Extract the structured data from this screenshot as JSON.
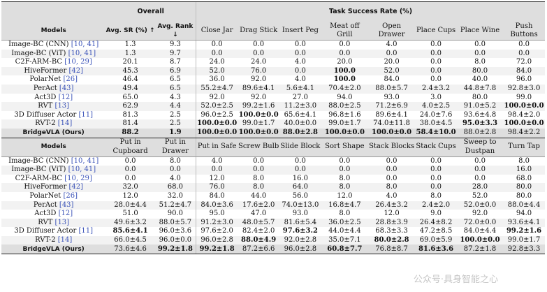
{
  "top": {
    "overall_label": "Overall",
    "tsr_label": "Task Success Rate (%)",
    "models_label": "Models",
    "avg_sr_label": "Avg. SR (%) ↑",
    "avg_rank_label": "Avg. Rank ↓",
    "tasks": [
      "Close Jar",
      "Drag Stick",
      "Insert Peg",
      "Meat off Grill",
      "Open Drawer",
      "Place Cups",
      "Place Wine",
      "Push Buttons"
    ],
    "rows": [
      {
        "model": "Image-BC (CNN)",
        "cite": "[10, 41]",
        "cells": [
          "1.3",
          "9.3",
          "0.0",
          "0.0",
          "0.0",
          "0.0",
          "4.0",
          "0.0",
          "0.0",
          "0.0"
        ],
        "bold": []
      },
      {
        "model": "Image-BC (ViT)",
        "cite": "[10, 41]",
        "cells": [
          "1.3",
          "9.7",
          "0.0",
          "0.0",
          "0.0",
          "0.0",
          "0.0",
          "0.0",
          "0.0",
          "0.0"
        ],
        "bold": []
      },
      {
        "model": "C2F-ARM-BC",
        "cite": "[10, 29]",
        "cells": [
          "20.1",
          "8.7",
          "24.0",
          "24.0",
          "4.0",
          "20.0",
          "20.0",
          "0.0",
          "8.0",
          "72.0"
        ],
        "bold": []
      },
      {
        "model": "HiveFormer",
        "cite": "[42]",
        "cells": [
          "45.3",
          "6.9",
          "52.0",
          "76.0",
          "0.0",
          "100.0",
          "52.0",
          "0.0",
          "80.0",
          "84.0"
        ],
        "bold": [
          5
        ]
      },
      {
        "model": "PolarNet",
        "cite": "[26]",
        "cells": [
          "46.4",
          "6.5",
          "36.0",
          "92.0",
          "4.0",
          "100.0",
          "84.0",
          "0.0",
          "40.0",
          "96.0"
        ],
        "bold": [
          5
        ]
      },
      {
        "model": "PerAct",
        "cite": "[43]",
        "cells": [
          "49.4",
          "6.5",
          "55.2±4.7",
          "89.6±4.1",
          "5.6±4.1",
          "70.4±2.0",
          "88.0±5.7",
          "2.4±3.2",
          "44.8±7.8",
          "92.8±3.0"
        ],
        "bold": []
      },
      {
        "model": "Act3D",
        "cite": "[12]",
        "cells": [
          "65.0",
          "4.3",
          "92.0",
          "92.0",
          "27.0",
          "94.0",
          "93.0",
          "3.0",
          "80.0",
          "99.0"
        ],
        "bold": []
      },
      {
        "model": "RVT",
        "cite": "[13]",
        "cells": [
          "62.9",
          "4.4",
          "52.0±2.5",
          "99.2±1.6",
          "11.2±3.0",
          "88.0±2.5",
          "71.2±6.9",
          "4.0±2.5",
          "91.0±5.2",
          "100.0±0.0"
        ],
        "bold": [
          9
        ]
      },
      {
        "model": "3D Diffuser Actor",
        "cite": "[11]",
        "cells": [
          "81.3",
          "2.5",
          "96.0±2.5",
          "100.0±0.0",
          "65.6±4.1",
          "96.8±1.6",
          "89.6±4.1",
          "24.0±7.6",
          "93.6±4.8",
          "98.4±2.0"
        ],
        "bold": [
          3
        ]
      },
      {
        "model": "RVT-2",
        "cite": "[14]",
        "cells": [
          "81.4",
          "2.5",
          "100.0±0.0",
          "99.0±1.7",
          "40.0±0.0",
          "99.0±1.7",
          "74.0±11.8",
          "38.0±4.5",
          "95.0±3.3",
          "100.0±0.0"
        ],
        "bold": [
          2,
          8,
          9
        ]
      },
      {
        "model": "BridgeVLA (Ours)",
        "cite": "",
        "cells": [
          "88.2",
          "1.9",
          "100.0±0.0",
          "100.0±0.0",
          "88.0±2.8",
          "100.0±0.0",
          "100.0±0.0",
          "58.4±10.0",
          "88.0±2.8",
          "98.4±2.2"
        ],
        "bold": [
          0,
          1,
          2,
          3,
          4,
          5,
          6,
          7
        ]
      }
    ]
  },
  "bottom": {
    "models_label": "Models",
    "tasks": [
      "Put in Cupboard",
      "Put in Drawer",
      "Put in Safe",
      "Screw Bulb",
      "Slide Block",
      "Sort Shape",
      "Stack Blocks",
      "Stack Cups",
      "Sweep to Dustpan",
      "Turn Tap"
    ],
    "rows": [
      {
        "model": "Image-BC (CNN)",
        "cite": "[10, 41]",
        "cells": [
          "0.0",
          "8.0",
          "4.0",
          "0.0",
          "0.0",
          "0.0",
          "0.0",
          "0.0",
          "0.0",
          "8.0"
        ],
        "bold": []
      },
      {
        "model": "Image-BC (ViT)",
        "cite": "[10, 41]",
        "cells": [
          "0.0",
          "0.0",
          "0.0",
          "0.0",
          "0.0",
          "0.0",
          "0.0",
          "0.0",
          "0.0",
          "16.0"
        ],
        "bold": []
      },
      {
        "model": "C2F-ARM-BC",
        "cite": "[10, 29]",
        "cells": [
          "0.0",
          "4.0",
          "12.0",
          "8.0",
          "16.0",
          "8.0",
          "0.0",
          "0.0",
          "0.0",
          "68.0"
        ],
        "bold": []
      },
      {
        "model": "HiveFormer",
        "cite": "[42]",
        "cells": [
          "32.0",
          "68.0",
          "76.0",
          "8.0",
          "64.0",
          "8.0",
          "8.0",
          "0.0",
          "28.0",
          "80.0"
        ],
        "bold": []
      },
      {
        "model": "PolarNet",
        "cite": "[26]",
        "cells": [
          "12.0",
          "32.0",
          "84.0",
          "44.0",
          "56.0",
          "12.0",
          "4.0",
          "8.0",
          "52.0",
          "80.0"
        ],
        "bold": []
      },
      {
        "model": "PerAct",
        "cite": "[43]",
        "cells": [
          "28.0±4.4",
          "51.2±4.7",
          "84.0±3.6",
          "17.6±2.0",
          "74.0±13.0",
          "16.8±4.7",
          "26.4±3.2",
          "2.4±2.0",
          "52.0±0.0",
          "88.0±4.4"
        ],
        "bold": []
      },
      {
        "model": "Act3D",
        "cite": "[12]",
        "cells": [
          "51.0",
          "90.0",
          "95.0",
          "47.0",
          "93.0",
          "8.0",
          "12.0",
          "9.0",
          "92.0",
          "94.0"
        ],
        "bold": []
      },
      {
        "model": "RVT",
        "cite": "[13]",
        "cells": [
          "49.6±3.2",
          "88.0±5.7",
          "91.2±3.0",
          "48.0±5.7",
          "81.6±5.4",
          "36.0±2.5",
          "28.8±3.9",
          "26.4±8.2",
          "72.0±0.0",
          "93.6±4.1"
        ],
        "bold": []
      },
      {
        "model": "3D Diffuser Actor",
        "cite": "[11]",
        "cells": [
          "85.6±4.1",
          "96.0±3.6",
          "97.6±2.0",
          "82.4±2.0",
          "97.6±3.2",
          "44.0±4.4",
          "68.3±3.3",
          "47.2±8.5",
          "84.0±4.4",
          "99.2±1.6"
        ],
        "bold": [
          0,
          4,
          9
        ]
      },
      {
        "model": "RVT-2",
        "cite": "[14]",
        "cells": [
          "66.0±4.5",
          "96.0±0.0",
          "96.0±2.8",
          "88.0±4.9",
          "92.0±2.8",
          "35.0±7.1",
          "80.0±2.8",
          "69.0±5.9",
          "100.0±0.0",
          "99.0±1.7"
        ],
        "bold": [
          3,
          6,
          8
        ]
      },
      {
        "model": "BridgeVLA (Ours)",
        "cite": "",
        "cells": [
          "73.6±4.6",
          "99.2±1.8",
          "99.2±1.8",
          "87.2±6.6",
          "96.0±2.8",
          "60.8±7.7",
          "76.8±8.7",
          "81.6±3.6",
          "87.2±1.8",
          "92.8±3.3"
        ],
        "bold": [
          1,
          2,
          5,
          7
        ]
      }
    ]
  },
  "watermark": "公众号·具身智能之心"
}
